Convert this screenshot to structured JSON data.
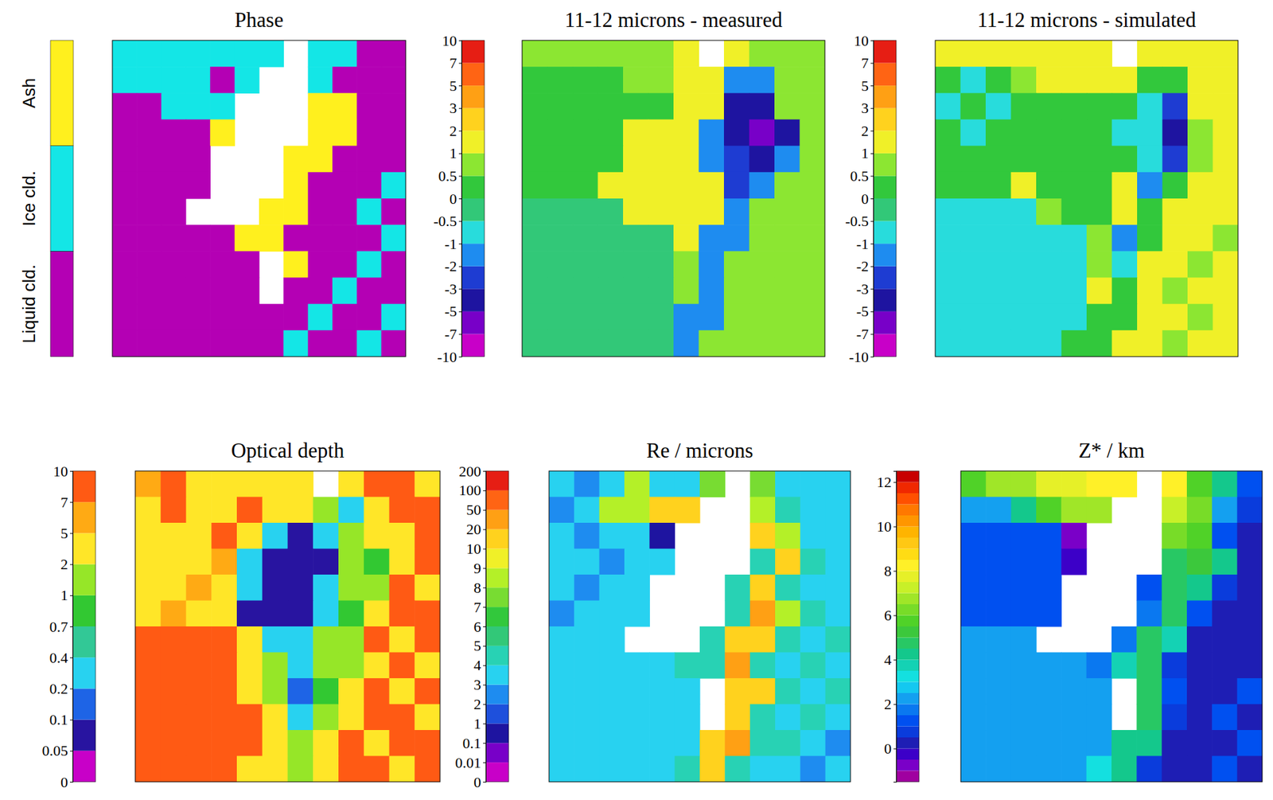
{
  "chart_data": [
    {
      "type": "heatmap",
      "title": "Phase",
      "categories": [
        "Liquid cld.",
        "Ice cld.",
        "Ash"
      ],
      "colors": [
        "#b400b4",
        "#14e6e6",
        "#fff01e"
      ],
      "z": [
        [
          1,
          1,
          1,
          1,
          1,
          1,
          1,
          null,
          1,
          1,
          0,
          0
        ],
        [
          1,
          1,
          1,
          1,
          0,
          1,
          null,
          null,
          1,
          0,
          0,
          0
        ],
        [
          0,
          0,
          1,
          1,
          1,
          null,
          null,
          null,
          2,
          2,
          0,
          0
        ],
        [
          0,
          0,
          0,
          0,
          2,
          null,
          null,
          null,
          2,
          2,
          0,
          0
        ],
        [
          0,
          0,
          0,
          0,
          null,
          null,
          null,
          2,
          2,
          0,
          0,
          0
        ],
        [
          0,
          0,
          0,
          0,
          null,
          null,
          null,
          2,
          0,
          0,
          0,
          1
        ],
        [
          0,
          0,
          0,
          null,
          null,
          null,
          2,
          2,
          0,
          0,
          1,
          0
        ],
        [
          0,
          0,
          0,
          0,
          0,
          2,
          2,
          0,
          0,
          0,
          0,
          1
        ],
        [
          0,
          0,
          0,
          0,
          0,
          0,
          null,
          2,
          0,
          0,
          1,
          0
        ],
        [
          0,
          0,
          0,
          0,
          0,
          0,
          null,
          0,
          0,
          1,
          0,
          0
        ],
        [
          0,
          0,
          0,
          0,
          0,
          0,
          0,
          0,
          1,
          0,
          0,
          1
        ],
        [
          0,
          0,
          0,
          0,
          0,
          0,
          0,
          1,
          0,
          0,
          1,
          0
        ]
      ]
    },
    {
      "type": "heatmap",
      "title": "11-12 microns - measured",
      "colorbar_ticks": [
        -10,
        -7,
        -5,
        -3,
        -2,
        -1,
        -0.5,
        0,
        0.5,
        1,
        2,
        3,
        5,
        7,
        10
      ],
      "colors": [
        "#c800c8",
        "#7800c8",
        "#1e14a0",
        "#1e3cd2",
        "#1e8cf0",
        "#28dcdc",
        "#32c878",
        "#32c83c",
        "#8ce632",
        "#f0f028",
        "#ffd21e",
        "#ffa014",
        "#ff6414",
        "#e61e14"
      ],
      "z": [
        [
          0.7,
          0.7,
          0.7,
          0.8,
          0.8,
          0.8,
          1.5,
          null,
          1.5,
          0.7,
          0.7,
          0.7
        ],
        [
          0.2,
          0.2,
          0.2,
          0.3,
          0.5,
          0.8,
          1.5,
          1.5,
          -1.5,
          -1.5,
          0.7,
          0.7
        ],
        [
          0.2,
          0.2,
          0.3,
          0.2,
          0.2,
          0.3,
          1.5,
          1.5,
          -4,
          -4,
          0.7,
          0.7
        ],
        [
          0.2,
          0.2,
          0.2,
          0.3,
          1.5,
          1.5,
          1.5,
          -1.5,
          -4,
          -6,
          -4,
          0.7
        ],
        [
          0.2,
          0.2,
          0.2,
          0.2,
          1.5,
          1.5,
          1.5,
          -1.5,
          -2.5,
          -4,
          -1.5,
          0.7
        ],
        [
          0.2,
          0.2,
          0.2,
          1.5,
          1.5,
          1.5,
          1.5,
          1.5,
          -2.5,
          -1.5,
          0.7,
          0.7
        ],
        [
          -0.2,
          -0.2,
          -0.2,
          -0.2,
          1.5,
          1.5,
          1.5,
          1.5,
          -1.5,
          0.7,
          0.7,
          0.7
        ],
        [
          -0.2,
          -0.2,
          -0.2,
          -0.2,
          -0.2,
          -0.2,
          1.5,
          -1.5,
          -1.5,
          0.7,
          0.7,
          0.7
        ],
        [
          -0.2,
          -0.2,
          -0.2,
          -0.2,
          -0.2,
          -0.2,
          0.8,
          -1.5,
          0.7,
          0.7,
          0.7,
          0.7
        ],
        [
          -0.2,
          -0.2,
          -0.2,
          -0.2,
          -0.2,
          -0.2,
          0.8,
          -1.5,
          0.7,
          0.7,
          0.7,
          0.7
        ],
        [
          -0.2,
          -0.2,
          -0.2,
          -0.2,
          -0.2,
          -0.2,
          -1.5,
          -1.5,
          0.7,
          0.7,
          0.7,
          0.7
        ],
        [
          -0.2,
          -0.2,
          -0.2,
          -0.2,
          -0.2,
          -0.2,
          -1.5,
          0.7,
          0.7,
          0.7,
          0.7,
          0.7
        ]
      ]
    },
    {
      "type": "heatmap",
      "title": "11-12 microns - simulated",
      "colorbar_ticks": [
        -10,
        -7,
        -5,
        -3,
        -2,
        -1,
        -0.5,
        0,
        0.5,
        1,
        2,
        3,
        5,
        7,
        10
      ],
      "colors": [
        "#c800c8",
        "#7800c8",
        "#1e14a0",
        "#1e3cd2",
        "#1e8cf0",
        "#28dcdc",
        "#32c878",
        "#32c83c",
        "#8ce632",
        "#f0f028",
        "#ffd21e",
        "#ffa014",
        "#ff6414",
        "#e61e14"
      ],
      "z": [
        [
          1.5,
          1.5,
          1.5,
          1.5,
          1.5,
          1.5,
          1.5,
          null,
          1.5,
          1.5,
          1.5,
          1.5
        ],
        [
          0.3,
          -0.7,
          0.3,
          0.8,
          1.5,
          1.5,
          1.5,
          1.5,
          0.3,
          0.3,
          1.5,
          1.5
        ],
        [
          -0.7,
          0.3,
          -0.7,
          0.3,
          0.3,
          0.3,
          0.3,
          0.3,
          -0.7,
          -2.5,
          1.5,
          1.5
        ],
        [
          0.3,
          -0.7,
          0.3,
          0.3,
          0.3,
          0.3,
          0.3,
          -0.7,
          -0.7,
          -4,
          0.8,
          1.5
        ],
        [
          0.3,
          0.3,
          0.3,
          0.3,
          0.3,
          0.3,
          0.3,
          0.3,
          -0.7,
          -2.5,
          0.8,
          1.5
        ],
        [
          0.3,
          0.3,
          0.3,
          1.5,
          0.3,
          0.3,
          0.3,
          1.5,
          -1.5,
          0.3,
          1.5,
          1.5
        ],
        [
          -0.7,
          -0.7,
          -0.7,
          -0.7,
          0.8,
          0.3,
          0.3,
          1.5,
          0.3,
          1.5,
          1.5,
          1.5
        ],
        [
          -0.7,
          -0.7,
          -0.7,
          -0.7,
          -0.7,
          -0.7,
          0.8,
          -1.5,
          0.3,
          1.5,
          1.5,
          0.8
        ],
        [
          -0.7,
          -0.7,
          -0.7,
          -0.7,
          -0.7,
          -0.7,
          0.8,
          -0.7,
          1.5,
          1.5,
          0.8,
          1.5
        ],
        [
          -0.7,
          -0.7,
          -0.7,
          -0.7,
          -0.7,
          -0.7,
          1.5,
          0.3,
          1.5,
          0.8,
          1.5,
          1.5
        ],
        [
          -0.7,
          -0.7,
          -0.7,
          -0.7,
          -0.7,
          -0.7,
          0.3,
          0.3,
          1.5,
          1.5,
          0.8,
          1.5
        ],
        [
          -0.7,
          -0.7,
          -0.7,
          -0.7,
          -0.7,
          0.3,
          0.3,
          1.5,
          1.5,
          0.8,
          1.5,
          1.5
        ]
      ]
    },
    {
      "type": "heatmap",
      "title": "Optical depth",
      "colorbar_ticks": [
        0,
        0.05,
        0.1,
        0.2,
        0.4,
        0.7,
        1,
        2,
        5,
        7,
        10
      ],
      "colors": [
        "#c800c8",
        "#2814a0",
        "#1e64e6",
        "#28d2f0",
        "#32c896",
        "#32c832",
        "#96e628",
        "#ffe628",
        "#ffaa14",
        "#ff5a14"
      ],
      "z": [
        [
          5,
          8,
          3,
          3,
          3,
          3,
          3,
          null,
          3,
          8,
          8,
          3
        ],
        [
          3,
          8,
          3,
          3,
          8,
          3,
          3,
          1.5,
          0.3,
          3,
          8,
          8
        ],
        [
          3,
          3,
          3,
          8,
          3,
          0.3,
          0.07,
          0.3,
          1.5,
          3,
          3,
          8
        ],
        [
          3,
          3,
          3,
          6,
          0.3,
          0.07,
          0.07,
          0.07,
          1.5,
          0.8,
          3,
          8
        ],
        [
          3,
          3,
          6,
          3,
          0.3,
          0.07,
          0.07,
          0.3,
          1.5,
          1.5,
          8,
          3
        ],
        [
          3,
          6,
          3,
          3,
          0.07,
          0.07,
          0.07,
          0.3,
          0.8,
          3,
          8,
          8
        ],
        [
          8,
          8,
          8,
          8,
          3,
          0.3,
          0.3,
          1.5,
          1.5,
          8,
          3,
          8
        ],
        [
          8,
          8,
          8,
          8,
          3,
          1.5,
          0.3,
          1.5,
          1.5,
          3,
          8,
          3
        ],
        [
          8,
          8,
          8,
          8,
          3,
          1.5,
          0.15,
          0.8,
          3,
          8,
          3,
          8
        ],
        [
          8,
          8,
          8,
          8,
          8,
          3,
          0.3,
          1.5,
          3,
          8,
          8,
          3
        ],
        [
          8,
          8,
          8,
          8,
          8,
          3,
          1.5,
          3,
          8,
          3,
          8,
          8
        ],
        [
          8,
          8,
          8,
          8,
          3,
          3,
          1.5,
          3,
          8,
          8,
          3,
          8
        ]
      ]
    },
    {
      "type": "heatmap",
      "title": "Re / microns",
      "colorbar_ticks": [
        0,
        0.01,
        0.1,
        1,
        2,
        3,
        4,
        5,
        6,
        7,
        8,
        9,
        10,
        20,
        50,
        100,
        200
      ],
      "colors": [
        "#c800c8",
        "#7800c8",
        "#1e14a0",
        "#1e50dc",
        "#1e8cf0",
        "#28d2f0",
        "#28d2b4",
        "#32c878",
        "#32c83c",
        "#78dc32",
        "#b4f028",
        "#f0f028",
        "#ffd21e",
        "#ffa014",
        "#ff6414",
        "#e61e14"
      ],
      "z": [
        [
          3.5,
          2.5,
          3.5,
          8,
          3.5,
          3.5,
          7,
          null,
          7,
          3.5,
          3.5,
          3.5
        ],
        [
          2.5,
          3.5,
          8,
          8,
          15,
          15,
          null,
          null,
          8,
          4.5,
          3.5,
          3.5
        ],
        [
          3.5,
          2.5,
          3.5,
          3.5,
          0.5,
          null,
          null,
          null,
          15,
          8,
          3.5,
          3.5
        ],
        [
          3.5,
          3.5,
          2.5,
          3.5,
          3.5,
          null,
          null,
          null,
          4.5,
          15,
          4.5,
          3.5
        ],
        [
          3.5,
          2.5,
          3.5,
          3.5,
          null,
          null,
          null,
          4.5,
          15,
          4.5,
          3.5,
          3.5
        ],
        [
          2.5,
          3.5,
          3.5,
          3.5,
          null,
          null,
          null,
          4.5,
          30,
          8,
          4.5,
          3.5
        ],
        [
          3.5,
          3.5,
          3.5,
          null,
          null,
          null,
          4.5,
          15,
          15,
          4.5,
          3.5,
          4.5
        ],
        [
          3.5,
          3.5,
          3.5,
          3.5,
          3.5,
          4.5,
          4.5,
          30,
          4.5,
          3.5,
          4.5,
          3.5
        ],
        [
          3.5,
          3.5,
          3.5,
          3.5,
          3.5,
          3.5,
          null,
          15,
          15,
          4.5,
          3.5,
          4.5
        ],
        [
          3.5,
          3.5,
          3.5,
          3.5,
          3.5,
          3.5,
          null,
          15,
          4.5,
          3.5,
          4.5,
          3.5
        ],
        [
          3.5,
          3.5,
          3.5,
          3.5,
          3.5,
          3.5,
          15,
          30,
          4.5,
          4.5,
          3.5,
          2.5
        ],
        [
          3.5,
          3.5,
          3.5,
          3.5,
          3.5,
          4.5,
          15,
          4.5,
          3.5,
          3.5,
          2.5,
          3.5
        ]
      ]
    },
    {
      "type": "heatmap",
      "title": "Z* / km",
      "colorbar_bounds": [
        -1.5,
        -1,
        -0.5,
        0,
        0.5,
        1,
        1.5,
        2,
        2.5,
        3,
        3.5,
        4,
        4.5,
        5,
        5.5,
        6,
        6.5,
        7,
        7.5,
        8,
        8.5,
        9,
        9.5,
        10,
        10.5,
        11,
        11.5,
        12,
        12.5
      ],
      "colorbar_ticks": [
        0,
        2,
        4,
        6,
        8,
        10,
        12
      ],
      "colors": [
        "#a000a0",
        "#7a00c8",
        "#3c00c8",
        "#1e1eb4",
        "#0a3cdc",
        "#0050f0",
        "#0a78f0",
        "#14a0f0",
        "#14c8f0",
        "#14e0e0",
        "#14d2b4",
        "#14c88c",
        "#28c864",
        "#3cc83c",
        "#50d228",
        "#78dc28",
        "#a0e628",
        "#c8f028",
        "#e6f028",
        "#fff028",
        "#ffdc14",
        "#ffc814",
        "#ffb400",
        "#ff9600",
        "#ff7800",
        "#ff5000",
        "#f02800",
        "#c80000"
      ],
      "z": [
        [
          5.5,
          6.5,
          6.5,
          7.5,
          7.5,
          8,
          8,
          null,
          8,
          5.5,
          4,
          1
        ],
        [
          2,
          2,
          4,
          5.5,
          6.5,
          6.5,
          null,
          null,
          7,
          6,
          2,
          0.5
        ],
        [
          1,
          1,
          1,
          1,
          -0.8,
          null,
          null,
          null,
          6,
          5.5,
          1,
          0.3
        ],
        [
          1,
          1,
          1,
          1,
          -0.5,
          null,
          null,
          null,
          4.5,
          5,
          4,
          0.3
        ],
        [
          1,
          1,
          1,
          1,
          null,
          null,
          null,
          1,
          4.5,
          4,
          0.5,
          0.3
        ],
        [
          1,
          1,
          1,
          1,
          null,
          null,
          null,
          1.5,
          4.5,
          1,
          0.3,
          0.3
        ],
        [
          2.2,
          2.2,
          2.2,
          null,
          null,
          null,
          1.5,
          4.5,
          3.5,
          0.3,
          0.3,
          0.3
        ],
        [
          2.2,
          2.2,
          2.2,
          2.2,
          2.2,
          1.5,
          3.5,
          4.5,
          0.5,
          0.3,
          0.3,
          0.3
        ],
        [
          2.2,
          2.2,
          2.2,
          2.2,
          2.2,
          2.2,
          null,
          4.5,
          1,
          0.3,
          0.3,
          1
        ],
        [
          2.2,
          2.2,
          2.2,
          2.2,
          2.2,
          2.2,
          null,
          4.5,
          0.5,
          0.3,
          1,
          0.3
        ],
        [
          2.2,
          2.2,
          2.2,
          2.2,
          2.2,
          2.2,
          4,
          4,
          0.3,
          0.3,
          0.3,
          1
        ],
        [
          2.2,
          2.2,
          2.2,
          2.2,
          2.2,
          3,
          4,
          0.5,
          0.3,
          0.3,
          1,
          0.3
        ]
      ]
    }
  ]
}
